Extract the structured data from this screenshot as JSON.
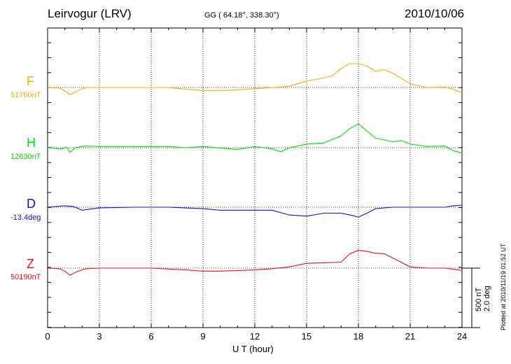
{
  "header": {
    "station": "Leirvogur (LRV)",
    "coords": "GG ( 64.18°, 338.30°)",
    "date": "2010/10/06"
  },
  "components": [
    {
      "letter": "F",
      "base": "51760nT",
      "color": "#f0b000"
    },
    {
      "letter": "H",
      "base": "12630nT",
      "color": "#00dd00"
    },
    {
      "letter": "D",
      "base": "-13.4deg",
      "color": "#1010dd"
    },
    {
      "letter": "Z",
      "base": "50190nT",
      "color": "#ee1010"
    }
  ],
  "scale": {
    "nt": "500 nT",
    "deg": "2.0 deg"
  },
  "plotted": "Plotted at 2010/11/19 01:52 UT",
  "chart_data": {
    "type": "line",
    "xlabel": "U T (hour)",
    "xlim": [
      0,
      24
    ],
    "xticks": [
      "0",
      "3",
      "6",
      "9",
      "12",
      "15",
      "18",
      "21",
      "24"
    ],
    "grid": true,
    "units_per_scale_bar": {
      "nT": 500,
      "deg": 2.0
    },
    "series": [
      {
        "name": "F",
        "unit": "nT",
        "base": 51760,
        "x": [
          0,
          0.7,
          1.0,
          1.3,
          1.7,
          2.2,
          3,
          5,
          7,
          8,
          9,
          10,
          11,
          12,
          13,
          14,
          15,
          16,
          16.5,
          17,
          17.5,
          18,
          18.5,
          19,
          19.5,
          20,
          21,
          22,
          23,
          23.5,
          24
        ],
        "y": [
          0,
          -5,
          -30,
          -60,
          -30,
          0,
          0,
          0,
          0,
          -15,
          -25,
          -25,
          -20,
          -10,
          0,
          10,
          55,
          80,
          100,
          160,
          200,
          200,
          180,
          135,
          150,
          120,
          30,
          0,
          5,
          -15,
          -45
        ]
      },
      {
        "name": "H",
        "unit": "nT",
        "base": 12630,
        "x": [
          0,
          0.8,
          1.1,
          1.3,
          1.6,
          2.2,
          3,
          5,
          7,
          8,
          9,
          11,
          12,
          13,
          13.5,
          14,
          15,
          16,
          17,
          17.5,
          18,
          18.5,
          19,
          20,
          20.5,
          21,
          22,
          23,
          23.5,
          24
        ],
        "y": [
          0,
          -10,
          5,
          -40,
          0,
          15,
          10,
          10,
          10,
          0,
          10,
          -15,
          10,
          -10,
          -35,
          0,
          30,
          40,
          100,
          160,
          200,
          140,
          80,
          50,
          60,
          30,
          10,
          15,
          -25,
          -45
        ]
      },
      {
        "name": "D",
        "unit": "deg",
        "base": -13.4,
        "x": [
          0,
          1,
          1.5,
          2,
          3,
          5,
          7,
          9,
          10,
          12,
          13,
          14,
          15,
          16,
          17,
          17.5,
          17.8,
          18,
          18.2,
          18.5,
          19,
          20,
          21,
          22,
          23,
          23.5,
          24
        ],
        "y": [
          0.0,
          0.05,
          0.02,
          -0.1,
          -0.02,
          0.0,
          0.0,
          -0.05,
          -0.1,
          -0.1,
          -0.1,
          -0.26,
          -0.3,
          -0.2,
          -0.2,
          -0.26,
          -0.3,
          -0.34,
          -0.28,
          -0.2,
          -0.05,
          0.0,
          0.0,
          0.0,
          0.0,
          0.05,
          0.07
        ]
      },
      {
        "name": "Z",
        "unit": "nT",
        "base": 50190,
        "x": [
          0,
          0.7,
          1.0,
          1.3,
          1.7,
          2.2,
          3,
          6,
          8,
          9,
          10,
          11,
          12,
          13,
          14,
          15,
          16,
          17,
          17.5,
          18,
          18.5,
          19,
          19.5,
          20,
          21,
          22,
          23,
          23.5,
          24
        ],
        "y": [
          0,
          -5,
          -25,
          -60,
          -30,
          -5,
          0,
          0,
          -15,
          -25,
          -25,
          -20,
          -15,
          -5,
          10,
          40,
          45,
          50,
          120,
          150,
          140,
          125,
          120,
          85,
          10,
          0,
          0,
          -10,
          -20
        ]
      }
    ]
  }
}
